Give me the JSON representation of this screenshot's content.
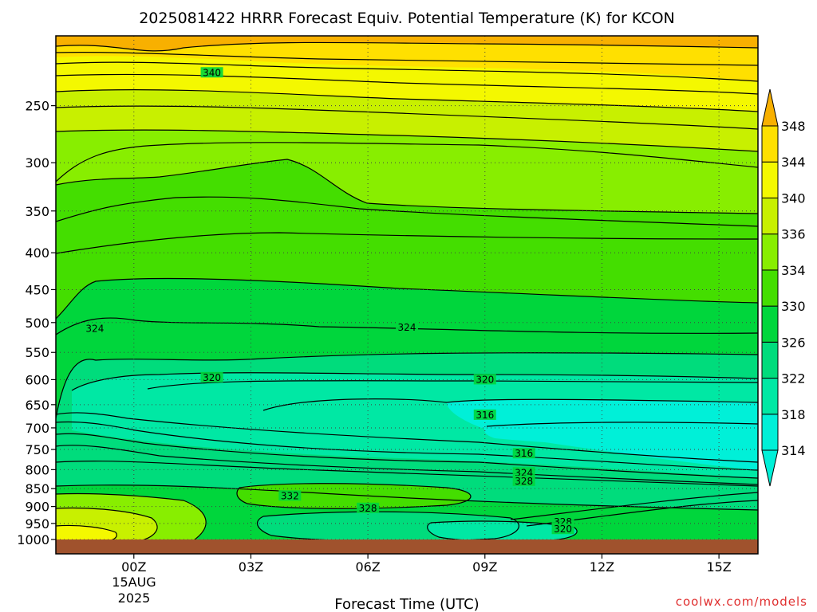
{
  "chart_data": {
    "type": "contour",
    "title": "2025081422 HRRR Forecast Equiv. Potential Temperature (K) for KCON",
    "xlabel": "Forecast Time (UTC)",
    "ylabel": "",
    "credit": "coolwx.com/models",
    "x_ticks": [
      "00Z",
      "03Z",
      "06Z",
      "09Z",
      "12Z",
      "15Z"
    ],
    "x_subtitle": [
      "15AUG",
      "2025"
    ],
    "x_range_hours": [
      -2,
      16
    ],
    "y_scale": "log (pressure, hPa)",
    "y_ticks": [
      250,
      300,
      350,
      400,
      450,
      500,
      550,
      600,
      650,
      700,
      750,
      800,
      850,
      900,
      950,
      1000
    ],
    "y_range": [
      200,
      1000
    ],
    "grid": "dotted",
    "colorbar": {
      "values": [
        314,
        318,
        322,
        326,
        330,
        334,
        336,
        340,
        344,
        348
      ],
      "colors": [
        "#00f0d8",
        "#00e8a4",
        "#00dc7c",
        "#00d63c",
        "#44de00",
        "#88ee00",
        "#c8f000",
        "#f4f800",
        "#ffe000",
        "#f8b000"
      ],
      "under_color": "#00f0d8",
      "over_color": "#f8b000"
    },
    "contour_labels": [
      {
        "value": "340",
        "time_h": 2,
        "p": 225
      },
      {
        "value": "324",
        "time_h": -1,
        "p": 510
      },
      {
        "value": "324",
        "time_h": 7,
        "p": 508
      },
      {
        "value": "320",
        "time_h": 2,
        "p": 596
      },
      {
        "value": "320",
        "time_h": 9,
        "p": 600
      },
      {
        "value": "316",
        "time_h": 9,
        "p": 672
      },
      {
        "value": "316",
        "time_h": 10,
        "p": 760
      },
      {
        "value": "324",
        "time_h": 10,
        "p": 808
      },
      {
        "value": "328",
        "time_h": 10,
        "p": 830
      },
      {
        "value": "332",
        "time_h": 4,
        "p": 870
      },
      {
        "value": "328",
        "time_h": 6,
        "p": 905
      },
      {
        "value": "328",
        "time_h": 11,
        "p": 945
      },
      {
        "value": "320",
        "time_h": 11,
        "p": 968
      }
    ]
  }
}
